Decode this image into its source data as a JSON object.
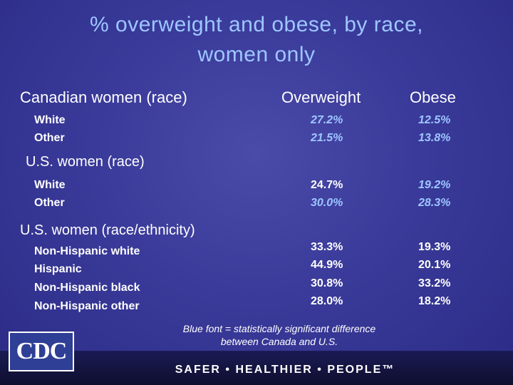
{
  "title_line1": "% overweight and obese, by race,",
  "title_line2": "women only",
  "headers": {
    "group": "Canadian women (race)",
    "overweight": "Overweight",
    "obese": "Obese"
  },
  "canadian": [
    {
      "label": "White",
      "overweight": "27.2%",
      "obese": "12.5%"
    },
    {
      "label": "Other",
      "overweight": "21.5%",
      "obese": "13.8%"
    }
  ],
  "us_race_title": "U.S. women (race)",
  "us_race": [
    {
      "label": "White",
      "overweight": "24.7%",
      "obese": "19.2%"
    },
    {
      "label": "Other",
      "overweight": "30.0%",
      "obese": "28.3%"
    }
  ],
  "us_eth_title": "U.S. women (race/ethnicity)",
  "us_eth": [
    {
      "label": "Non-Hispanic white",
      "overweight": "33.3%",
      "obese": "19.3%"
    },
    {
      "label": "Hispanic",
      "overweight": "44.9%",
      "obese": "20.1%"
    },
    {
      "label": "Non-Hispanic black",
      "overweight": "30.8%",
      "obese": "33.2%"
    },
    {
      "label": "Non-Hispanic other",
      "overweight": "28.0%",
      "obese": "18.2%"
    }
  ],
  "note_line1": "Blue font = statistically significant difference",
  "note_line2": "between Canada and U.S.",
  "logo_text": "CDC",
  "tagline": "SAFER • HEALTHIER • PEOPLE™",
  "colors": {
    "significant": "#9ec7ff",
    "normal": "#ffffff"
  }
}
